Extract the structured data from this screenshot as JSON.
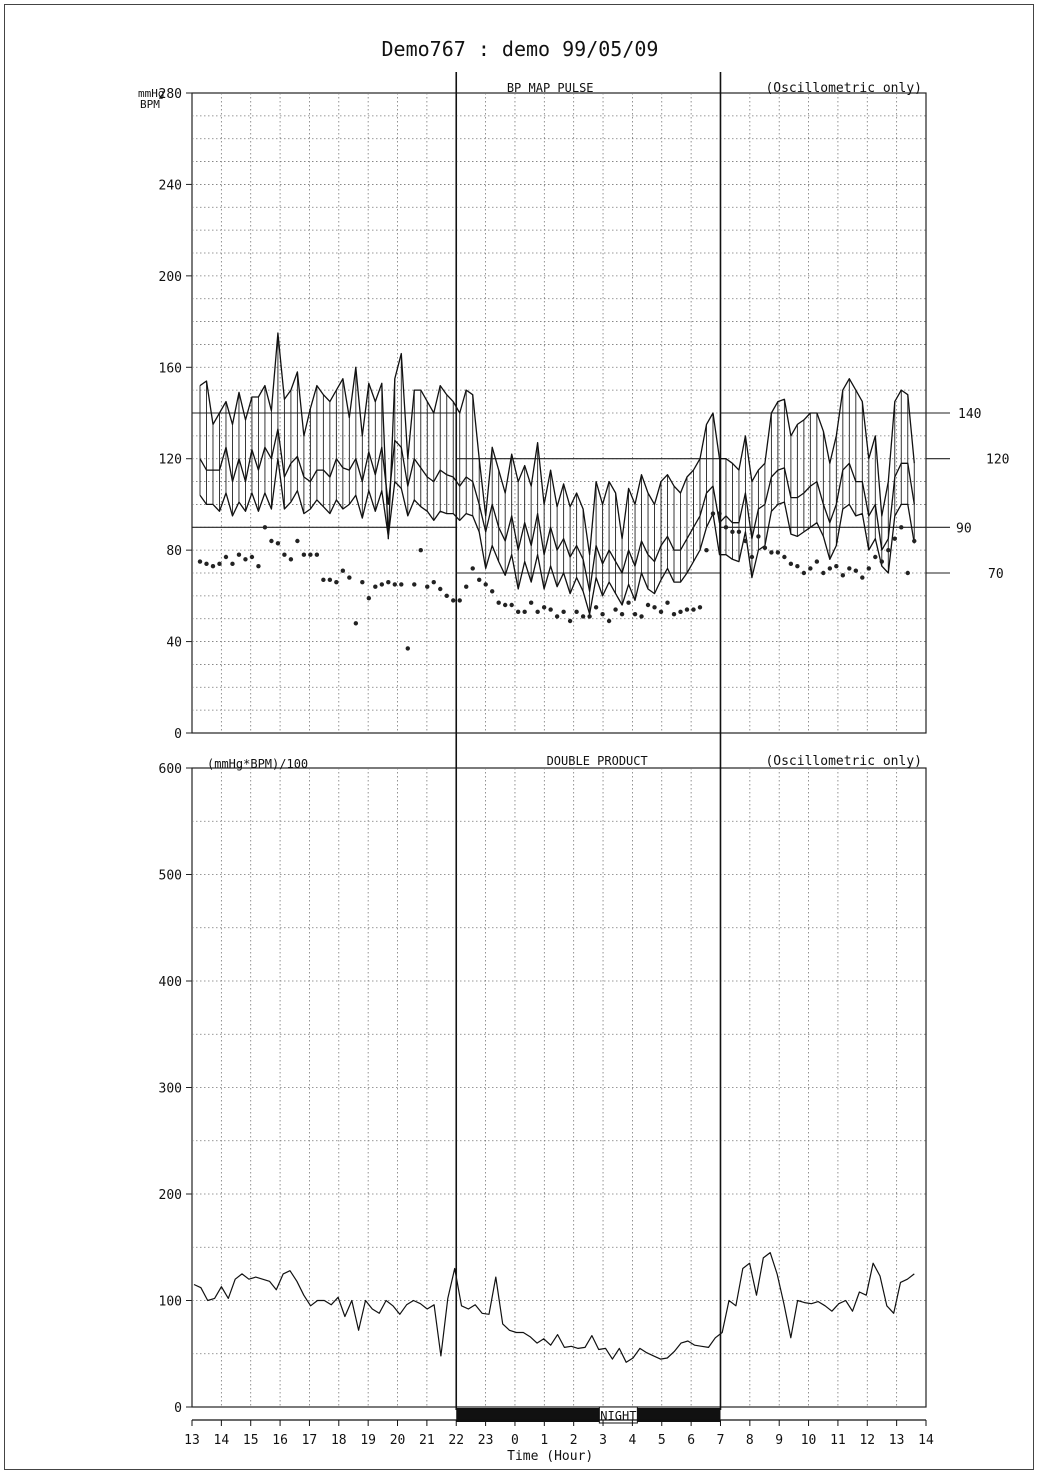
{
  "title": "Demo767 : demo  99/05/09",
  "chart_data": [
    {
      "type": "line",
      "title": "BP  MAP  PULSE",
      "note": "(Oscillometric only)",
      "ylabel_lines": [
        "mmHg",
        "BPM"
      ],
      "ylim": [
        0,
        280
      ],
      "yticks": [
        0,
        40,
        80,
        120,
        160,
        200,
        240,
        280
      ],
      "grid": true,
      "reference_lines": [
        140,
        120,
        90,
        70
      ],
      "series": [
        {
          "key": "systolic",
          "values": [
            152,
            154,
            135,
            140,
            145,
            135,
            149,
            137,
            147,
            147,
            152,
            141,
            175,
            146,
            150,
            158,
            130,
            142,
            152,
            148,
            145,
            150,
            155,
            138,
            160,
            130,
            153,
            145,
            153,
            85,
            155,
            166,
            120,
            150,
            150,
            145,
            140,
            152,
            148,
            145,
            140,
            150,
            148,
            120,
            95,
            125,
            115,
            105,
            122,
            110,
            117,
            108,
            127,
            100,
            115,
            99,
            109,
            99,
            105,
            98,
            78,
            110,
            100,
            110,
            105,
            85,
            107,
            100,
            113,
            105,
            100,
            110,
            113,
            108,
            105,
            112,
            115,
            120,
            135,
            140,
            120,
            120,
            118,
            115,
            130,
            110,
            115,
            118,
            140,
            145,
            146,
            130,
            135,
            137,
            140,
            140,
            132,
            118,
            130,
            150,
            155,
            150,
            145,
            120,
            130,
            95,
            110,
            145,
            150,
            148,
            118
          ]
        },
        {
          "key": "map",
          "values": [
            120,
            115,
            115,
            115,
            125,
            110,
            120,
            110,
            124,
            115,
            125,
            120,
            133,
            112,
            118,
            121,
            112,
            110,
            115,
            115,
            112,
            120,
            116,
            115,
            120,
            110,
            123,
            113,
            125,
            100,
            128,
            125,
            108,
            120,
            116,
            112,
            110,
            115,
            113,
            112,
            108,
            112,
            110,
            100,
            88,
            100,
            90,
            84,
            95,
            80,
            92,
            82,
            96,
            78,
            90,
            80,
            85,
            77,
            82,
            76,
            62,
            82,
            74,
            80,
            75,
            70,
            80,
            73,
            84,
            78,
            75,
            82,
            86,
            80,
            80,
            85,
            90,
            95,
            105,
            108,
            92,
            95,
            92,
            92,
            105,
            85,
            98,
            100,
            112,
            115,
            116,
            103,
            103,
            105,
            108,
            110,
            100,
            92,
            100,
            115,
            118,
            110,
            110,
            95,
            100,
            80,
            85,
            112,
            118,
            118,
            100
          ]
        },
        {
          "key": "diastolic",
          "values": [
            104,
            100,
            100,
            97,
            105,
            95,
            101,
            97,
            105,
            97,
            105,
            98,
            120,
            98,
            101,
            106,
            96,
            98,
            102,
            99,
            96,
            102,
            98,
            100,
            104,
            94,
            106,
            97,
            106,
            86,
            110,
            107,
            95,
            102,
            99,
            97,
            93,
            97,
            96,
            96,
            93,
            96,
            95,
            88,
            72,
            82,
            75,
            69,
            78,
            63,
            75,
            66,
            78,
            63,
            73,
            64,
            70,
            61,
            68,
            62,
            52,
            68,
            60,
            66,
            61,
            56,
            65,
            58,
            70,
            63,
            61,
            67,
            72,
            66,
            66,
            70,
            75,
            80,
            90,
            96,
            78,
            78,
            76,
            75,
            88,
            68,
            80,
            82,
            97,
            100,
            101,
            87,
            86,
            88,
            90,
            92,
            86,
            76,
            82,
            98,
            100,
            95,
            96,
            80,
            85,
            73,
            70,
            95,
            100,
            100,
            83
          ]
        },
        {
          "key": "pulse",
          "values": [
            75,
            74,
            73,
            74,
            77,
            74,
            78,
            76,
            77,
            73,
            90,
            84,
            83,
            78,
            76,
            84,
            78,
            78,
            78,
            67,
            67,
            66,
            71,
            68,
            48,
            66,
            59,
            64,
            65,
            66,
            65,
            65,
            37,
            65,
            80,
            64,
            66,
            63,
            60,
            58,
            58,
            64,
            72,
            67,
            65,
            62,
            57,
            56,
            56,
            53,
            53,
            57,
            53,
            55,
            54,
            51,
            53,
            49,
            53,
            51,
            51,
            55,
            52,
            49,
            54,
            52,
            57,
            52,
            51,
            56,
            55,
            53,
            57,
            52,
            53,
            54,
            54,
            55,
            80,
            96,
            96,
            90,
            88,
            88,
            84,
            77,
            86,
            81,
            79,
            79,
            77,
            74,
            73,
            70,
            72,
            75,
            70,
            72,
            73,
            69,
            72,
            71,
            68,
            72,
            77,
            75,
            80,
            85,
            90,
            70,
            84
          ]
        }
      ]
    },
    {
      "type": "line",
      "title": "DOUBLE PRODUCT",
      "note": "(Oscillometric only)",
      "ylabel": "(mmHg*BPM)/100",
      "ylim": [
        0,
        600
      ],
      "yticks": [
        0,
        100,
        200,
        300,
        400,
        500,
        600
      ],
      "grid": true,
      "x_ticks": [
        "13",
        "14",
        "15",
        "16",
        "17",
        "18",
        "19",
        "20",
        "21",
        "22",
        "23",
        "0",
        "1",
        "2",
        "3",
        "4",
        "5",
        "6",
        "7",
        "8",
        "9",
        "10",
        "11",
        "12",
        "13",
        "14"
      ],
      "xlabel": "Time (Hour)",
      "night_label": "NIGHT",
      "night_range": [
        "22",
        "7"
      ],
      "series": [
        {
          "key": "double_product",
          "values": [
            115,
            112,
            100,
            102,
            113,
            102,
            120,
            125,
            120,
            122,
            120,
            118,
            110,
            125,
            128,
            118,
            105,
            95,
            100,
            100,
            96,
            103,
            85,
            100,
            72,
            100,
            92,
            88,
            100,
            95,
            87,
            96,
            100,
            97,
            92,
            96,
            48,
            102,
            130,
            95,
            92,
            96,
            88,
            87,
            122,
            78,
            72,
            70,
            70,
            66,
            60,
            64,
            58,
            68,
            56,
            57,
            55,
            56,
            67,
            54,
            55,
            45,
            55,
            42,
            46,
            55,
            51,
            48,
            45,
            46,
            52,
            60,
            62,
            58,
            57,
            56,
            65,
            70,
            100,
            95,
            130,
            135,
            105,
            140,
            145,
            125,
            97,
            65,
            100,
            98,
            97,
            99,
            95,
            90,
            97,
            100,
            90,
            108,
            105,
            135,
            123,
            95,
            88,
            117,
            120,
            125
          ]
        }
      ]
    }
  ]
}
